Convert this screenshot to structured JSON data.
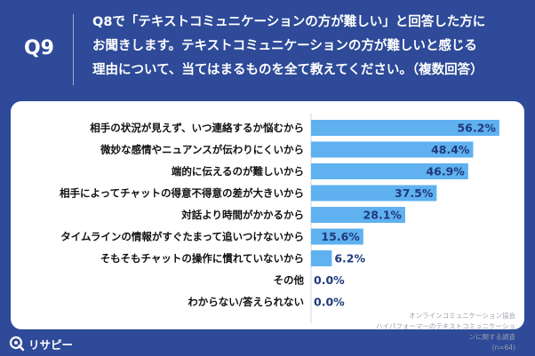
{
  "header": {
    "question_id": "Q9",
    "question_text": "Q8で「テキストコミュニケーションの方が難しい」と回答した方に\nお聞きします。テキストコミュニケーションの方が難しいと感じる\n理由について、当てはまるものを全て教えてください。（複数回答）"
  },
  "source": {
    "line1": "オンラインコミュニケーション協会",
    "line2": "ハイパフォーマーのテキストコミュニケーションに関する調査",
    "line3": "(n=64)"
  },
  "brand": {
    "name": "リサピー",
    "icon": "rsp-logo-icon"
  },
  "colors": {
    "background": "#2e4a98",
    "bar": "#5fb1f0",
    "value_text": "#1f3a7a"
  },
  "chart_data": {
    "type": "bar",
    "orientation": "horizontal",
    "title": "",
    "xlabel": "",
    "ylabel": "",
    "xlim": [
      0,
      100
    ],
    "categories": [
      "相手の状況が見えず、いつ連絡するか悩むから",
      "微妙な感情やニュアンスが伝わりにくいから",
      "端的に伝えるのが難しいから",
      "相手によってチャットの得意不得意の差が大きいから",
      "対話より時間がかかるから",
      "タイムラインの情報がすぐたまって追いつけないから",
      "そもそもチャットの操作に慣れていないから",
      "その他",
      "わからない/答えられない"
    ],
    "values": [
      56.2,
      48.4,
      46.9,
      37.5,
      28.1,
      15.6,
      6.2,
      0.0,
      0.0
    ],
    "value_labels": [
      "56.2%",
      "48.4%",
      "46.9%",
      "37.5%",
      "28.1%",
      "15.6%",
      "6.2%",
      "0.0%",
      "0.0%"
    ]
  }
}
